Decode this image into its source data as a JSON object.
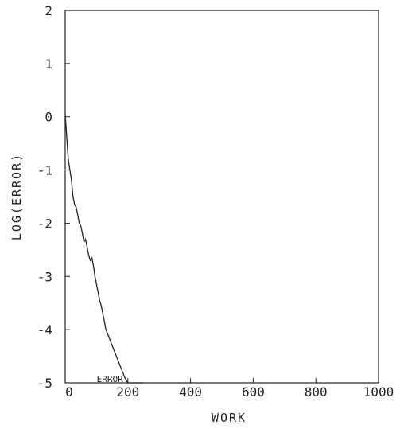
{
  "chart_data": {
    "type": "line",
    "xlabel": "WORK",
    "ylabel": "LOG(ERROR)",
    "xlim": [
      0,
      1000
    ],
    "ylim": [
      -5,
      2
    ],
    "xticks": [
      0,
      200,
      400,
      600,
      800,
      1000
    ],
    "yticks": [
      -5,
      -4,
      -3,
      -2,
      -1,
      0,
      1,
      2
    ],
    "grid": false,
    "series": [
      {
        "x": [
          0,
          5,
          10,
          15,
          20,
          25,
          30,
          35,
          40,
          45,
          50,
          55,
          60,
          65,
          70,
          75,
          80,
          85,
          90,
          95,
          100,
          105,
          110,
          115,
          120,
          125,
          130,
          140,
          150,
          160,
          170,
          180,
          190,
          200,
          210,
          220,
          230,
          240,
          250
        ],
        "y": [
          0.05,
          -0.4,
          -0.8,
          -1.0,
          -1.2,
          -1.5,
          -1.65,
          -1.7,
          -1.85,
          -2.0,
          -2.05,
          -2.2,
          -2.35,
          -2.3,
          -2.45,
          -2.6,
          -2.7,
          -2.65,
          -2.8,
          -3.0,
          -3.15,
          -3.3,
          -3.45,
          -3.55,
          -3.7,
          -3.85,
          -4.0,
          -4.15,
          -4.3,
          -4.45,
          -4.6,
          -4.75,
          -4.9,
          -5.0,
          -5.0,
          -5.0,
          -5.0,
          -5.0,
          -5.0
        ]
      }
    ],
    "annotations": [
      {
        "text": "ERROR",
        "x": 235,
        "y": -5.0
      }
    ]
  }
}
